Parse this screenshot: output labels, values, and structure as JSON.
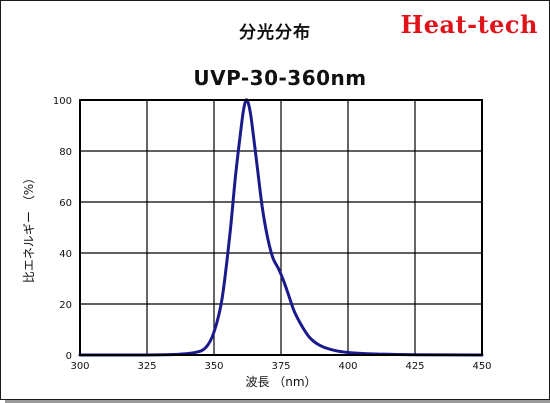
{
  "header": {
    "heading": "分光分布",
    "brand": "Heat-tech"
  },
  "colors": {
    "curve": "#1a1a8c",
    "brand": "#e0121a",
    "grid": "#000000"
  },
  "chart_data": {
    "type": "line",
    "title": "UVP-30-360nm",
    "xlabel": "波長 （nm）",
    "ylabel": "比エネルギー （%）",
    "xlim": [
      300,
      450
    ],
    "ylim": [
      0,
      100
    ],
    "xticks": [
      300,
      325,
      350,
      375,
      400,
      425,
      450
    ],
    "yticks": [
      0,
      20,
      40,
      60,
      80,
      100
    ],
    "grid": true,
    "series": [
      {
        "x": [
          300,
          320,
          335,
          343,
          347,
          350,
          353,
          356,
          358,
          360,
          361,
          362,
          363,
          364,
          366,
          368,
          370,
          372,
          374,
          376,
          378,
          380,
          383,
          386,
          390,
          395,
          400,
          410,
          425,
          450
        ],
        "y": [
          0,
          0,
          0.2,
          1,
          3,
          9,
          22,
          48,
          70,
          88,
          96,
          100,
          98,
          92,
          75,
          58,
          46,
          38,
          34,
          29,
          23,
          17,
          11,
          6.5,
          3.5,
          1.8,
          1,
          0.4,
          0.1,
          0
        ]
      }
    ]
  }
}
